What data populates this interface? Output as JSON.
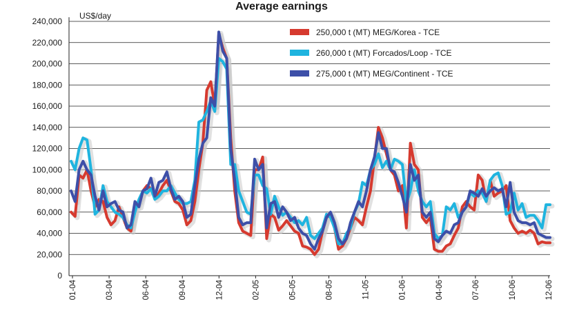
{
  "chart_data": {
    "type": "line",
    "title": "Average earnings",
    "ylabel": "US$/day",
    "xlabel": "",
    "ylim": [
      0,
      240000
    ],
    "y_ticks": [
      "0",
      "20,000",
      "40,000",
      "60,000",
      "80,000",
      "100,000",
      "120,000",
      "140,000",
      "160,000",
      "180,000",
      "200,000",
      "220,000",
      "240,000"
    ],
    "x_tick_labels": [
      "01-04",
      "03-04",
      "06-04",
      "09-04",
      "12-04",
      "02-05",
      "05-05",
      "08-05",
      "11-05",
      "01-06",
      "04-06",
      "07-06",
      "10-06",
      "12-06"
    ],
    "grid": true,
    "legend_position": "top-right",
    "series": [
      {
        "name": "250,000 t (MT) MEG/Korea - TCE",
        "color": "#d63a2f",
        "values": [
          60000,
          56000,
          95000,
          92000,
          100000,
          80000,
          65000,
          72000,
          70000,
          55000,
          48000,
          52000,
          65000,
          55000,
          45000,
          42000,
          65000,
          70000,
          80000,
          85000,
          82000,
          75000,
          78000,
          85000,
          90000,
          80000,
          70000,
          68000,
          62000,
          48000,
          52000,
          70000,
          100000,
          125000,
          175000,
          183000,
          160000,
          228000,
          215000,
          205000,
          130000,
          80000,
          50000,
          42000,
          40000,
          38000,
          100000,
          100000,
          112000,
          35000,
          58000,
          55000,
          43000,
          47000,
          52000,
          47000,
          42000,
          40000,
          28000,
          27000,
          25000,
          20000,
          25000,
          42000,
          55000,
          57000,
          45000,
          25000,
          28000,
          35000,
          45000,
          55000,
          52000,
          48000,
          65000,
          80000,
          110000,
          140000,
          130000,
          115000,
          100000,
          95000,
          80000,
          85000,
          45000,
          125000,
          105000,
          100000,
          55000,
          50000,
          55000,
          25000,
          23000,
          23000,
          28000,
          30000,
          38000,
          45000,
          65000,
          70000,
          65000,
          62000,
          95000,
          90000,
          70000,
          90000,
          75000,
          78000,
          80000,
          85000,
          52000,
          45000,
          40000,
          42000,
          40000,
          43000,
          40000,
          30000,
          32000,
          31000,
          31000
        ]
      },
      {
        "name": "260,000 t (MT) Forcados/Loop - TCE",
        "color": "#1fb4df",
        "values": [
          108000,
          100000,
          120000,
          130000,
          128000,
          100000,
          58000,
          62000,
          85000,
          70000,
          65000,
          60000,
          58000,
          55000,
          48000,
          45000,
          60000,
          72000,
          80000,
          78000,
          82000,
          72000,
          75000,
          80000,
          80000,
          85000,
          78000,
          72000,
          68000,
          68000,
          70000,
          90000,
          145000,
          147000,
          155000,
          165000,
          155000,
          205000,
          202000,
          195000,
          105000,
          105000,
          80000,
          70000,
          60000,
          58000,
          95000,
          95000,
          85000,
          82000,
          58000,
          75000,
          65000,
          57000,
          60000,
          55000,
          50000,
          52000,
          48000,
          55000,
          38000,
          35000,
          40000,
          45000,
          58000,
          55000,
          45000,
          30000,
          30000,
          40000,
          45000,
          60000,
          68000,
          88000,
          85000,
          100000,
          105000,
          115000,
          102000,
          108000,
          100000,
          110000,
          108000,
          105000,
          68000,
          80000,
          100000,
          80000,
          70000,
          65000,
          70000,
          40000,
          35000,
          38000,
          65000,
          62000,
          68000,
          55000,
          60000,
          65000,
          78000,
          75000,
          80000,
          78000,
          70000,
          90000,
          95000,
          97000,
          85000,
          58000,
          60000,
          78000,
          62000,
          68000,
          55000,
          57000,
          57000,
          52000,
          45000,
          67000,
          67000
        ]
      },
      {
        "name": "275,000 t (MT) MEG/Continent - TCE",
        "color": "#3d4fa8",
        "values": [
          80000,
          70000,
          100000,
          108000,
          100000,
          95000,
          75000,
          62000,
          80000,
          65000,
          68000,
          70000,
          62000,
          60000,
          45000,
          48000,
          70000,
          65000,
          80000,
          82000,
          92000,
          75000,
          88000,
          90000,
          98000,
          82000,
          72000,
          75000,
          70000,
          55000,
          58000,
          85000,
          110000,
          125000,
          130000,
          168000,
          160000,
          230000,
          212000,
          205000,
          120000,
          90000,
          55000,
          48000,
          50000,
          50000,
          110000,
          100000,
          105000,
          45000,
          68000,
          70000,
          55000,
          65000,
          60000,
          52000,
          55000,
          45000,
          40000,
          38000,
          30000,
          25000,
          35000,
          42000,
          55000,
          60000,
          50000,
          35000,
          30000,
          35000,
          50000,
          60000,
          70000,
          65000,
          80000,
          100000,
          112000,
          135000,
          120000,
          120000,
          100000,
          98000,
          88000,
          75000,
          60000,
          105000,
          90000,
          95000,
          60000,
          55000,
          60000,
          35000,
          32000,
          38000,
          42000,
          40000,
          48000,
          50000,
          60000,
          65000,
          80000,
          78000,
          75000,
          82000,
          75000,
          80000,
          83000,
          80000,
          82000,
          65000,
          88000,
          60000,
          52000,
          50000,
          50000,
          48000,
          50000,
          40000,
          38000,
          36000,
          36000
        ]
      }
    ]
  }
}
